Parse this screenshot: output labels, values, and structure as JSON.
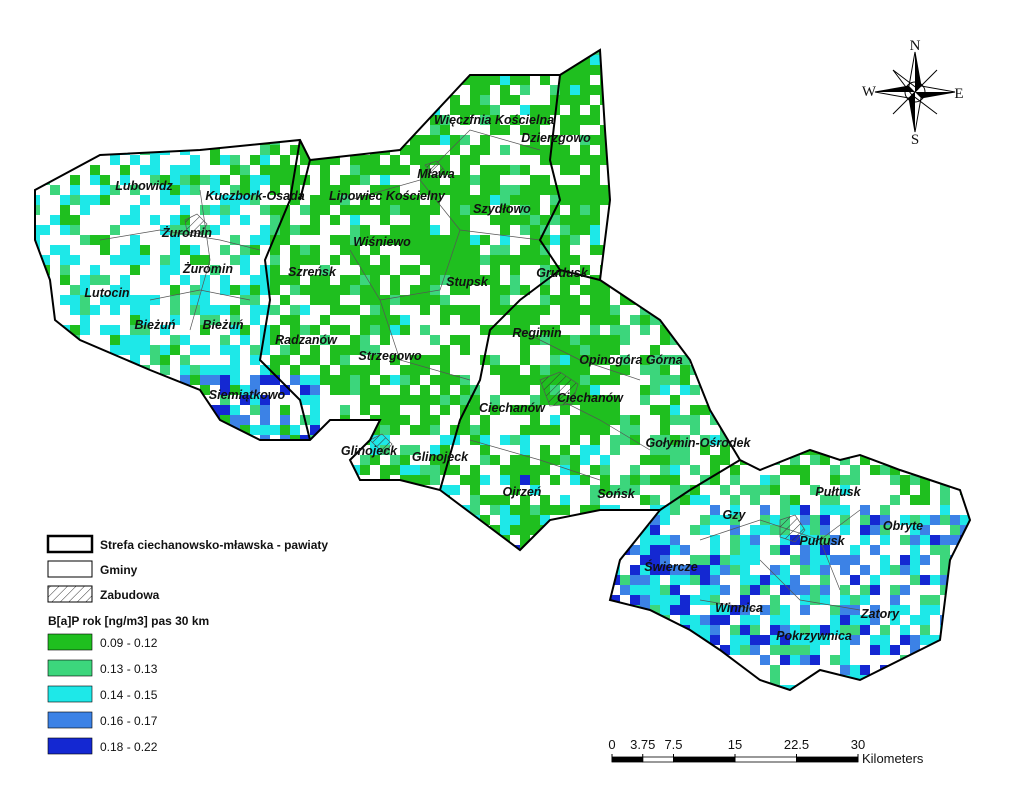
{
  "compass": {
    "n": "N",
    "s": "S",
    "e": "E",
    "w": "W"
  },
  "places": [
    "Więczfnia Kościelna",
    "Dzierzgowo",
    "Mława",
    "Lipowiec Kościelny",
    "Kuczbork-Osada",
    "Lubowidz",
    "Szydłowo",
    "Żuromin",
    "Żuromin",
    "Wiśniewo",
    "Szreńsk",
    "Grudusk",
    "Stupsk",
    "Lutocin",
    "Bieżuń",
    "Bieżuń",
    "Regimin",
    "Radzanów",
    "Strzegowo",
    "Opinogóra Górna",
    "Siemiątkowo",
    "Ciechanów",
    "Ciechanów",
    "Glinojeck",
    "Glinojeck",
    "Gołymin-Ośrodek",
    "Ojrzeń",
    "Sońsk",
    "Pułtusk",
    "Pułtusk",
    "Gzy",
    "Obryte",
    "Świercze",
    "Winnica",
    "Zatory",
    "Pokrzywnica"
  ],
  "legend": {
    "boundary": "Strefa ciechanowsko-mławska - pawiaty",
    "gminy": "Gminy",
    "zabudowa": "Zabudowa",
    "title": "B[a]P rok [ng/m3] pas 30 km",
    "classes": [
      {
        "label": "0.09 - 0.12",
        "color": "#1fbf1f"
      },
      {
        "label": "0.13 - 0.13",
        "color": "#3cd67c"
      },
      {
        "label": "0.14 - 0.15",
        "color": "#1ee8e8"
      },
      {
        "label": "0.16 - 0.17",
        "color": "#3c82e6"
      },
      {
        "label": "0.18 - 0.22",
        "color": "#1428d2"
      }
    ]
  },
  "scale": {
    "ticks": [
      0,
      3.75,
      7.5,
      15,
      22.5,
      30
    ],
    "unit": "Kilometers"
  }
}
